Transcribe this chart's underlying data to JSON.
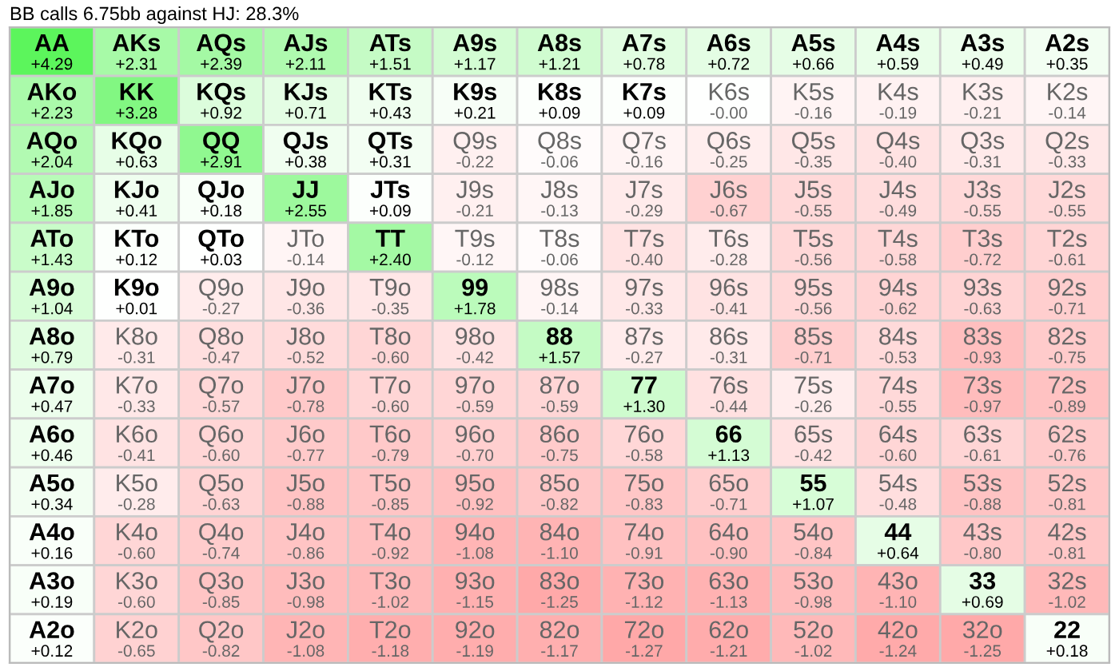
{
  "chart_data": {
    "type": "heatmap",
    "title": "BB calls 6.75bb against HJ: 28.3%",
    "categories": [
      null,
      null,
      null,
      null,
      null,
      null,
      null,
      null,
      null,
      null,
      null,
      null,
      null
    ],
    "y_categories": [
      null,
      null,
      null,
      null,
      null,
      null,
      null,
      null,
      null,
      null,
      null,
      null,
      null
    ],
    "cells": [
      [
        4.29,
        2.31,
        2.39,
        2.11,
        1.51,
        1.17,
        1.21,
        0.78,
        0.72,
        0.66,
        0.59,
        0.49,
        0.35
      ],
      [
        2.23,
        3.28,
        0.92,
        0.71,
        0.43,
        0.21,
        0.09,
        0.09,
        -0.0,
        -0.16,
        -0.19,
        -0.21,
        -0.14
      ],
      [
        2.04,
        0.63,
        2.91,
        0.38,
        0.31,
        -0.22,
        -0.06,
        -0.16,
        -0.25,
        -0.35,
        -0.4,
        -0.31,
        -0.33
      ],
      [
        1.85,
        0.41,
        0.18,
        2.55,
        0.09,
        -0.21,
        -0.13,
        -0.29,
        -0.67,
        -0.55,
        -0.49,
        -0.55,
        -0.55
      ],
      [
        1.43,
        0.12,
        0.03,
        -0.14,
        2.4,
        -0.12,
        -0.06,
        -0.4,
        -0.28,
        -0.56,
        -0.58,
        -0.72,
        -0.61
      ],
      [
        1.04,
        0.01,
        -0.27,
        -0.36,
        -0.35,
        1.78,
        -0.14,
        -0.33,
        -0.41,
        -0.56,
        -0.62,
        -0.63,
        -0.71
      ],
      [
        0.79,
        -0.31,
        -0.47,
        -0.52,
        -0.6,
        -0.42,
        1.57,
        -0.27,
        -0.31,
        -0.71,
        -0.53,
        -0.93,
        -0.75
      ],
      [
        0.47,
        -0.33,
        -0.57,
        -0.78,
        -0.6,
        -0.59,
        -0.59,
        1.3,
        -0.44,
        -0.26,
        -0.55,
        -0.97,
        -0.89
      ],
      [
        0.46,
        -0.41,
        -0.6,
        -0.77,
        -0.79,
        -0.7,
        -0.75,
        -0.58,
        1.13,
        -0.42,
        -0.6,
        -0.61,
        -0.76
      ],
      [
        0.34,
        -0.28,
        -0.63,
        -0.88,
        -0.85,
        -0.92,
        -0.82,
        -0.83,
        -0.71,
        1.07,
        -0.48,
        -0.88,
        -0.81
      ],
      [
        0.16,
        -0.6,
        -0.74,
        -0.86,
        -0.92,
        -1.08,
        -1.1,
        -0.91,
        -0.9,
        -0.84,
        0.64,
        -0.8,
        -0.81
      ],
      [
        0.19,
        -0.6,
        -0.85,
        -0.98,
        -1.02,
        -1.15,
        -1.25,
        -1.12,
        -1.13,
        -0.98,
        -1.1,
        0.69,
        -1.02
      ],
      [
        0.12,
        -0.65,
        -0.82,
        -1.08,
        -1.18,
        -1.19,
        -1.17,
        -1.27,
        -1.21,
        -1.02,
        -1.24,
        -1.25,
        0.18
      ]
    ],
    "cell_labels": [
      [
        "+4.29",
        "+2.31",
        "+2.39",
        "+2.11",
        "+1.51",
        "+1.17",
        "+1.21",
        "+0.78",
        "+0.72",
        "+0.66",
        "+0.59",
        "+0.49",
        "+0.35"
      ],
      [
        "+2.23",
        "+3.28",
        "+0.92",
        "+0.71",
        "+0.43",
        "+0.21",
        "+0.09",
        "+0.09",
        "-0.00",
        "-0.16",
        "-0.19",
        "-0.21",
        "-0.14"
      ],
      [
        "+2.04",
        "+0.63",
        "+2.91",
        "+0.38",
        "+0.31",
        "-0.22",
        "-0.06",
        "-0.16",
        "-0.25",
        "-0.35",
        "-0.40",
        "-0.31",
        "-0.33"
      ],
      [
        "+1.85",
        "+0.41",
        "+0.18",
        "+2.55",
        "+0.09",
        "-0.21",
        "-0.13",
        "-0.29",
        "-0.67",
        "-0.55",
        "-0.49",
        "-0.55",
        "-0.55"
      ],
      [
        "+1.43",
        "+0.12",
        "+0.03",
        "-0.14",
        "+2.40",
        "-0.12",
        "-0.06",
        "-0.40",
        "-0.28",
        "-0.56",
        "-0.58",
        "-0.72",
        "-0.61"
      ],
      [
        "+1.04",
        "+0.01",
        "-0.27",
        "-0.36",
        "-0.35",
        "+1.78",
        "-0.14",
        "-0.33",
        "-0.41",
        "-0.56",
        "-0.62",
        "-0.63",
        "-0.71"
      ],
      [
        "+0.79",
        "-0.31",
        "-0.47",
        "-0.52",
        "-0.60",
        "-0.42",
        "+1.57",
        "-0.27",
        "-0.31",
        "-0.71",
        "-0.53",
        "-0.93",
        "-0.75"
      ],
      [
        "+0.47",
        "-0.33",
        "-0.57",
        "-0.78",
        "-0.60",
        "-0.59",
        "-0.59",
        "+1.30",
        "-0.44",
        "-0.26",
        "-0.55",
        "-0.97",
        "-0.89"
      ],
      [
        "+0.46",
        "-0.41",
        "-0.60",
        "-0.77",
        "-0.79",
        "-0.70",
        "-0.75",
        "-0.58",
        "+1.13",
        "-0.42",
        "-0.60",
        "-0.61",
        "-0.76"
      ],
      [
        "+0.34",
        "-0.28",
        "-0.63",
        "-0.88",
        "-0.85",
        "-0.92",
        "-0.82",
        "-0.83",
        "-0.71",
        "+1.07",
        "-0.48",
        "-0.88",
        "-0.81"
      ],
      [
        "+0.16",
        "-0.60",
        "-0.74",
        "-0.86",
        "-0.92",
        "-1.08",
        "-1.10",
        "-0.91",
        "-0.90",
        "-0.84",
        "+0.64",
        "-0.80",
        "-0.81"
      ],
      [
        "+0.19",
        "-0.60",
        "-0.85",
        "-0.98",
        "-1.02",
        "-1.15",
        "-1.25",
        "-1.12",
        "-1.13",
        "-0.98",
        "-1.10",
        "+0.69",
        "-1.02"
      ],
      [
        "+0.12",
        "-0.65",
        "-0.82",
        "-1.08",
        "-1.18",
        "-1.19",
        "-1.17",
        "-1.27",
        "-1.21",
        "-1.02",
        "-1.24",
        "-1.25",
        "+0.18"
      ]
    ],
    "annotations": [
      [
        "AA",
        "AKs",
        "AQs",
        "AJs",
        "ATs",
        "A9s",
        "A8s",
        "A7s",
        "A6s",
        "A5s",
        "A4s",
        "A3s",
        "A2s"
      ],
      [
        "AKo",
        "KK",
        "KQs",
        "KJs",
        "KTs",
        "K9s",
        "K8s",
        "K7s",
        "K6s",
        "K5s",
        "K4s",
        "K3s",
        "K2s"
      ],
      [
        "AQo",
        "KQo",
        "QQ",
        "QJs",
        "QTs",
        "Q9s",
        "Q8s",
        "Q7s",
        "Q6s",
        "Q5s",
        "Q4s",
        "Q3s",
        "Q2s"
      ],
      [
        "AJo",
        "KJo",
        "QJo",
        "JJ",
        "JTs",
        "J9s",
        "J8s",
        "J7s",
        "J6s",
        "J5s",
        "J4s",
        "J3s",
        "J2s"
      ],
      [
        "ATo",
        "KTo",
        "QTo",
        "JTo",
        "TT",
        "T9s",
        "T8s",
        "T7s",
        "T6s",
        "T5s",
        "T4s",
        "T3s",
        "T2s"
      ],
      [
        "A9o",
        "K9o",
        "Q9o",
        "J9o",
        "T9o",
        "99",
        "98s",
        "97s",
        "96s",
        "95s",
        "94s",
        "93s",
        "92s"
      ],
      [
        "A8o",
        "K8o",
        "Q8o",
        "J8o",
        "T8o",
        "98o",
        "88",
        "87s",
        "86s",
        "85s",
        "84s",
        "83s",
        "82s"
      ],
      [
        "A7o",
        "K7o",
        "Q7o",
        "J7o",
        "T7o",
        "97o",
        "87o",
        "77",
        "76s",
        "75s",
        "74s",
        "73s",
        "72s"
      ],
      [
        "A6o",
        "K6o",
        "Q6o",
        "J6o",
        "T6o",
        "96o",
        "86o",
        "76o",
        "66",
        "65s",
        "64s",
        "63s",
        "62s"
      ],
      [
        "A5o",
        "K5o",
        "Q5o",
        "J5o",
        "T5o",
        "95o",
        "85o",
        "75o",
        "65o",
        "55",
        "54s",
        "53s",
        "52s"
      ],
      [
        "A4o",
        "K4o",
        "Q4o",
        "J4o",
        "T4o",
        "94o",
        "84o",
        "74o",
        "64o",
        "54o",
        "44",
        "43s",
        "42s"
      ],
      [
        "A3o",
        "K3o",
        "Q3o",
        "J3o",
        "T3o",
        "93o",
        "83o",
        "73o",
        "63o",
        "53o",
        "43o",
        "33",
        "32s"
      ],
      [
        "A2o",
        "K2o",
        "Q2o",
        "J2o",
        "T2o",
        "92o",
        "82o",
        "72o",
        "62o",
        "52o",
        "42o",
        "32o",
        "22"
      ]
    ]
  }
}
